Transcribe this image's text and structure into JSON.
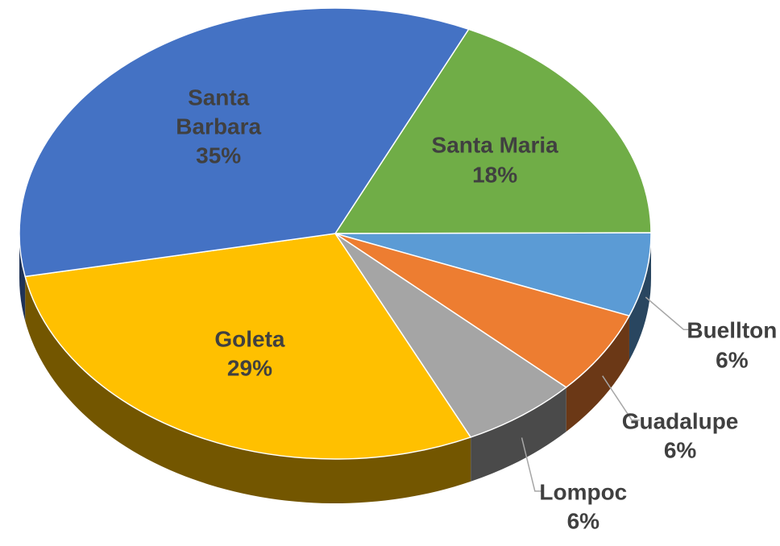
{
  "chart_data": {
    "type": "pie",
    "categories": [
      "Santa Maria",
      "Buellton",
      "Guadalupe",
      "Lompoc",
      "Goleta",
      "Santa Barbara"
    ],
    "values": [
      18,
      6,
      6,
      6,
      29,
      35
    ],
    "value_labels": [
      "18%",
      "6%",
      "6%",
      "6%",
      "29%",
      "35%"
    ],
    "colors": [
      "#70ad47",
      "#5b9bd5",
      "#ed7d31",
      "#a5a5a5",
      "#ffc000",
      "#4472c4"
    ]
  }
}
